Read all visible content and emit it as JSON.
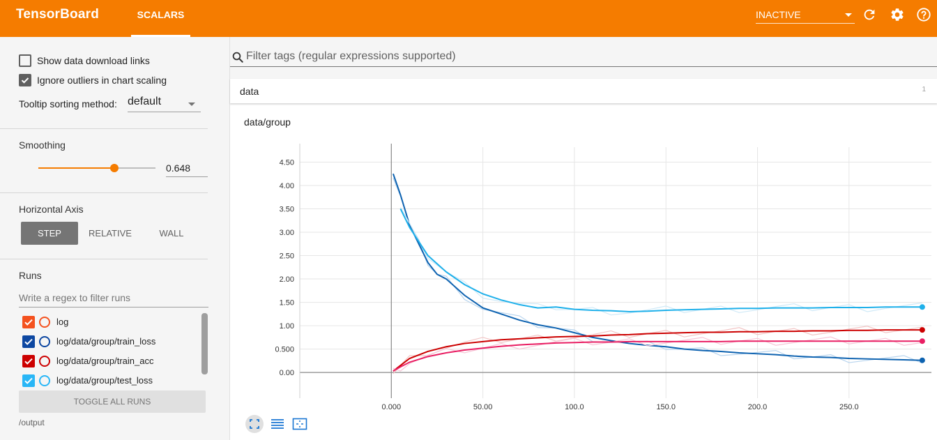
{
  "header": {
    "brand": "TensorBoard",
    "tab": "SCALARS",
    "run_select": "INACTIVE"
  },
  "sidebar": {
    "show_download_label": "Show data download links",
    "ignore_outliers_label": "Ignore outliers in chart scaling",
    "tooltip_label": "Tooltip sorting method:",
    "tooltip_value": "default",
    "smoothing_title": "Smoothing",
    "smoothing_value": "0.648",
    "smoothing_fraction": 0.648,
    "haxis_title": "Horizontal Axis",
    "haxis_options": [
      "STEP",
      "RELATIVE",
      "WALL"
    ],
    "runs_title": "Runs",
    "runs_placeholder": "Write a regex to filter runs",
    "runs": [
      {
        "label": "log",
        "color": "#f4511e",
        "checked": true
      },
      {
        "label": "log/data/group/train_loss",
        "color": "#0d47a1",
        "checked": true
      },
      {
        "label": "log/data/group/train_acc",
        "color": "#cc0000",
        "checked": true
      },
      {
        "label": "log/data/group/test_loss",
        "color": "#29b6f6",
        "checked": true
      }
    ],
    "toggle_all": "TOGGLE ALL RUNS",
    "output": "/output"
  },
  "main": {
    "filter_placeholder": "Filter tags (regular expressions supported)",
    "category": "data",
    "category_count": "1"
  },
  "chart_data": {
    "type": "line",
    "title": "data/group",
    "xlabel": "",
    "ylabel": "",
    "xlim": [
      -50,
      295
    ],
    "ylim": [
      -0.55,
      4.82
    ],
    "x_ticks": [
      0,
      50,
      100,
      150,
      200,
      250
    ],
    "x_tick_labels": [
      "0.000",
      "50.00",
      "100.0",
      "150.0",
      "200.0",
      "250.0"
    ],
    "y_ticks": [
      0,
      0.5,
      1,
      1.5,
      2,
      2.5,
      3,
      3.5,
      4,
      4.5
    ],
    "y_tick_labels": [
      "0.00",
      "0.500",
      "1.00",
      "1.50",
      "2.00",
      "2.50",
      "3.00",
      "3.50",
      "4.00",
      "4.50"
    ],
    "grid": true,
    "series": [
      {
        "color": "#0d62b0",
        "raw_color": "#b7d4ee",
        "x": [
          1,
          5,
          10,
          15,
          20,
          25,
          30,
          40,
          50,
          60,
          70,
          80,
          90,
          100,
          110,
          120,
          130,
          140,
          150,
          160,
          170,
          180,
          190,
          200,
          210,
          220,
          230,
          240,
          250,
          260,
          270,
          280,
          290
        ],
        "y": [
          4.25,
          3.8,
          3.15,
          2.75,
          2.35,
          2.1,
          2.0,
          1.65,
          1.38,
          1.25,
          1.12,
          1.02,
          0.95,
          0.85,
          0.75,
          0.68,
          0.62,
          0.58,
          0.55,
          0.5,
          0.47,
          0.45,
          0.42,
          0.4,
          0.38,
          0.35,
          0.33,
          0.32,
          0.3,
          0.29,
          0.28,
          0.27,
          0.26
        ]
      },
      {
        "color": "#1eb0ea",
        "raw_color": "#cfe9f7",
        "x": [
          5,
          10,
          20,
          30,
          40,
          50,
          60,
          70,
          80,
          90,
          100,
          110,
          120,
          130,
          140,
          150,
          160,
          170,
          180,
          190,
          200,
          210,
          220,
          230,
          240,
          250,
          260,
          270,
          280,
          290
        ],
        "y": [
          3.5,
          3.1,
          2.5,
          2.15,
          1.88,
          1.68,
          1.55,
          1.45,
          1.38,
          1.4,
          1.35,
          1.33,
          1.32,
          1.3,
          1.31,
          1.33,
          1.34,
          1.35,
          1.36,
          1.37,
          1.37,
          1.38,
          1.38,
          1.38,
          1.39,
          1.39,
          1.39,
          1.4,
          1.4,
          1.4
        ]
      },
      {
        "color": "#cc0000",
        "raw_color": "#f2c4c4",
        "x": [
          1,
          5,
          10,
          20,
          30,
          40,
          50,
          60,
          70,
          80,
          90,
          100,
          110,
          120,
          130,
          140,
          150,
          160,
          170,
          180,
          190,
          200,
          210,
          220,
          230,
          240,
          250,
          260,
          270,
          280,
          290
        ],
        "y": [
          0.03,
          0.15,
          0.3,
          0.45,
          0.55,
          0.62,
          0.66,
          0.7,
          0.72,
          0.74,
          0.76,
          0.77,
          0.78,
          0.8,
          0.81,
          0.83,
          0.84,
          0.85,
          0.86,
          0.86,
          0.87,
          0.87,
          0.88,
          0.88,
          0.89,
          0.89,
          0.9,
          0.9,
          0.91,
          0.91,
          0.91
        ]
      },
      {
        "color": "#e91e63",
        "raw_color": "#f7c6d7",
        "x": [
          1,
          5,
          10,
          20,
          30,
          40,
          50,
          60,
          70,
          80,
          90,
          100,
          110,
          120,
          130,
          140,
          150,
          160,
          170,
          180,
          190,
          200,
          210,
          220,
          230,
          240,
          250,
          260,
          270,
          280,
          290
        ],
        "y": [
          0.03,
          0.12,
          0.22,
          0.34,
          0.42,
          0.48,
          0.52,
          0.56,
          0.59,
          0.61,
          0.63,
          0.64,
          0.65,
          0.65,
          0.66,
          0.66,
          0.66,
          0.66,
          0.66,
          0.66,
          0.67,
          0.67,
          0.67,
          0.67,
          0.67,
          0.67,
          0.67,
          0.67,
          0.67,
          0.67,
          0.67
        ]
      }
    ]
  }
}
